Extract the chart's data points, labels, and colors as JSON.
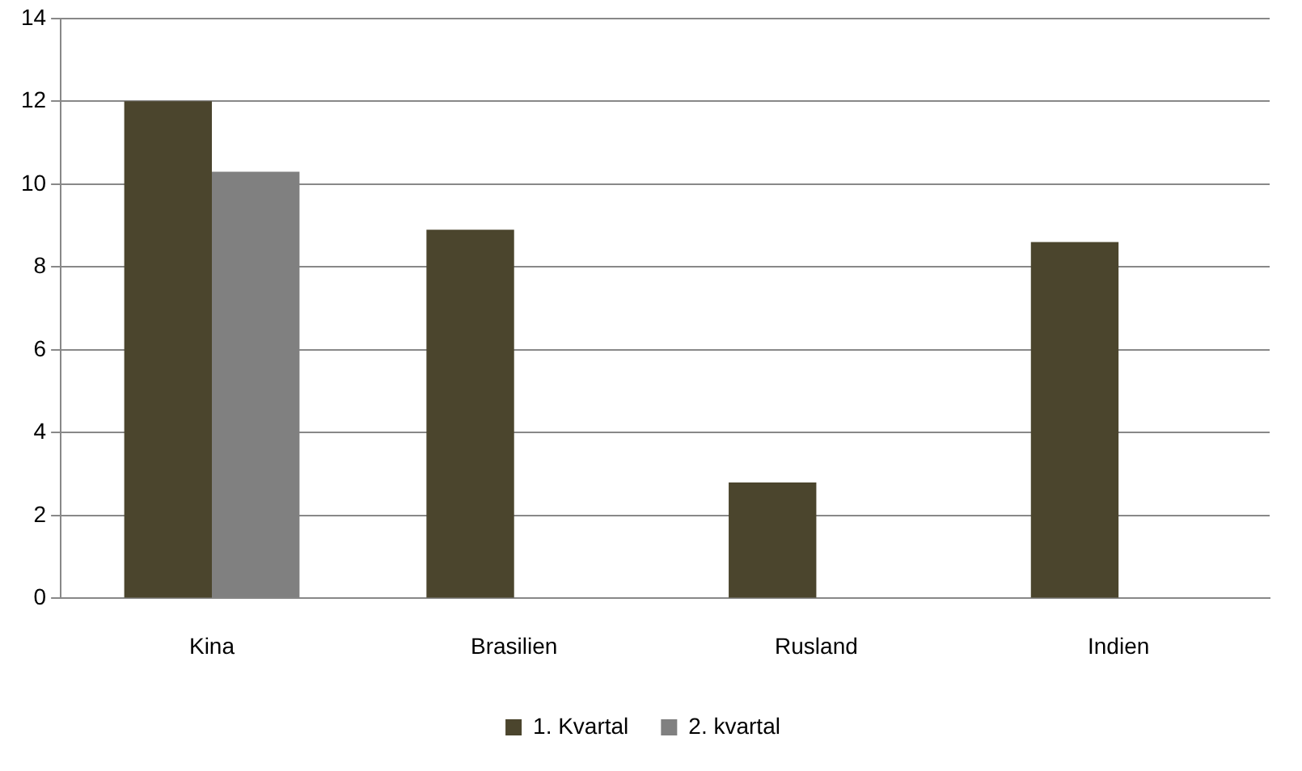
{
  "chart_data": {
    "type": "bar",
    "categories": [
      "Kina",
      "Brasilien",
      "Rusland",
      "Indien"
    ],
    "series": [
      {
        "name": "1. Kvartal",
        "color": "#4b452d",
        "values": [
          12,
          8.9,
          2.8,
          8.6
        ]
      },
      {
        "name": "2. kvartal",
        "color": "#808080",
        "values": [
          10.3,
          null,
          null,
          null
        ]
      }
    ],
    "ylim": [
      0,
      14
    ],
    "yticks": [
      0,
      2,
      4,
      6,
      8,
      10,
      12,
      14
    ],
    "grid": "y",
    "legend": "bottom"
  }
}
